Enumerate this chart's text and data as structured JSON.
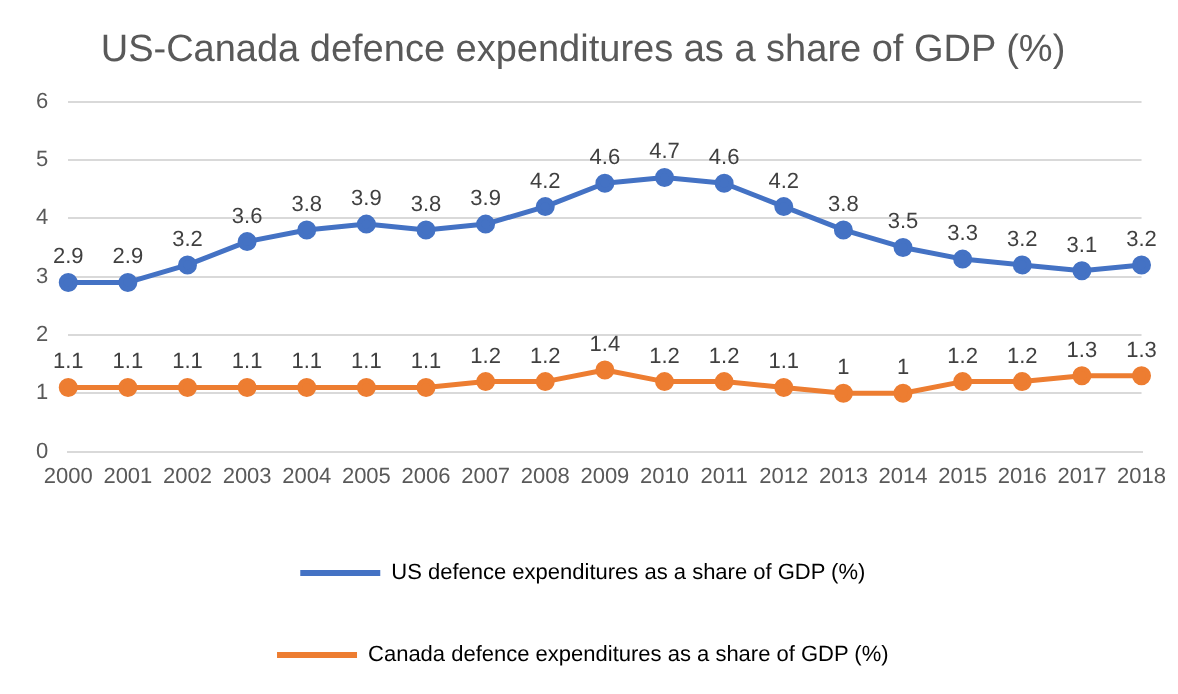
{
  "chart_data": {
    "type": "line",
    "title": "US-Canada defence expenditures as a share of GDP (%)",
    "categories": [
      "2000",
      "2001",
      "2002",
      "2003",
      "2004",
      "2005",
      "2006",
      "2007",
      "2008",
      "2009",
      "2010",
      "2011",
      "2012",
      "2013",
      "2014",
      "2015",
      "2016",
      "2017",
      "2018"
    ],
    "series": [
      {
        "name": "US defence expenditures as a share of GDP (%)",
        "color": "#4472c4",
        "values": [
          2.9,
          2.9,
          3.2,
          3.6,
          3.8,
          3.9,
          3.8,
          3.9,
          4.2,
          4.6,
          4.7,
          4.6,
          4.2,
          3.8,
          3.5,
          3.3,
          3.2,
          3.1,
          3.2
        ]
      },
      {
        "name": "Canada defence expenditures as a share of GDP (%)",
        "color": "#ed7d31",
        "values": [
          1.1,
          1.1,
          1.1,
          1.1,
          1.1,
          1.1,
          1.1,
          1.2,
          1.2,
          1.4,
          1.2,
          1.2,
          1.1,
          1,
          1,
          1.2,
          1.2,
          1.3,
          1.3
        ]
      }
    ],
    "ylim": [
      0,
      6
    ],
    "yticks": [
      0,
      1,
      2,
      3,
      4,
      5,
      6
    ],
    "grid": "y",
    "legend": "bottom",
    "marker": "circle",
    "line_style": "solid",
    "data_labels": true
  }
}
